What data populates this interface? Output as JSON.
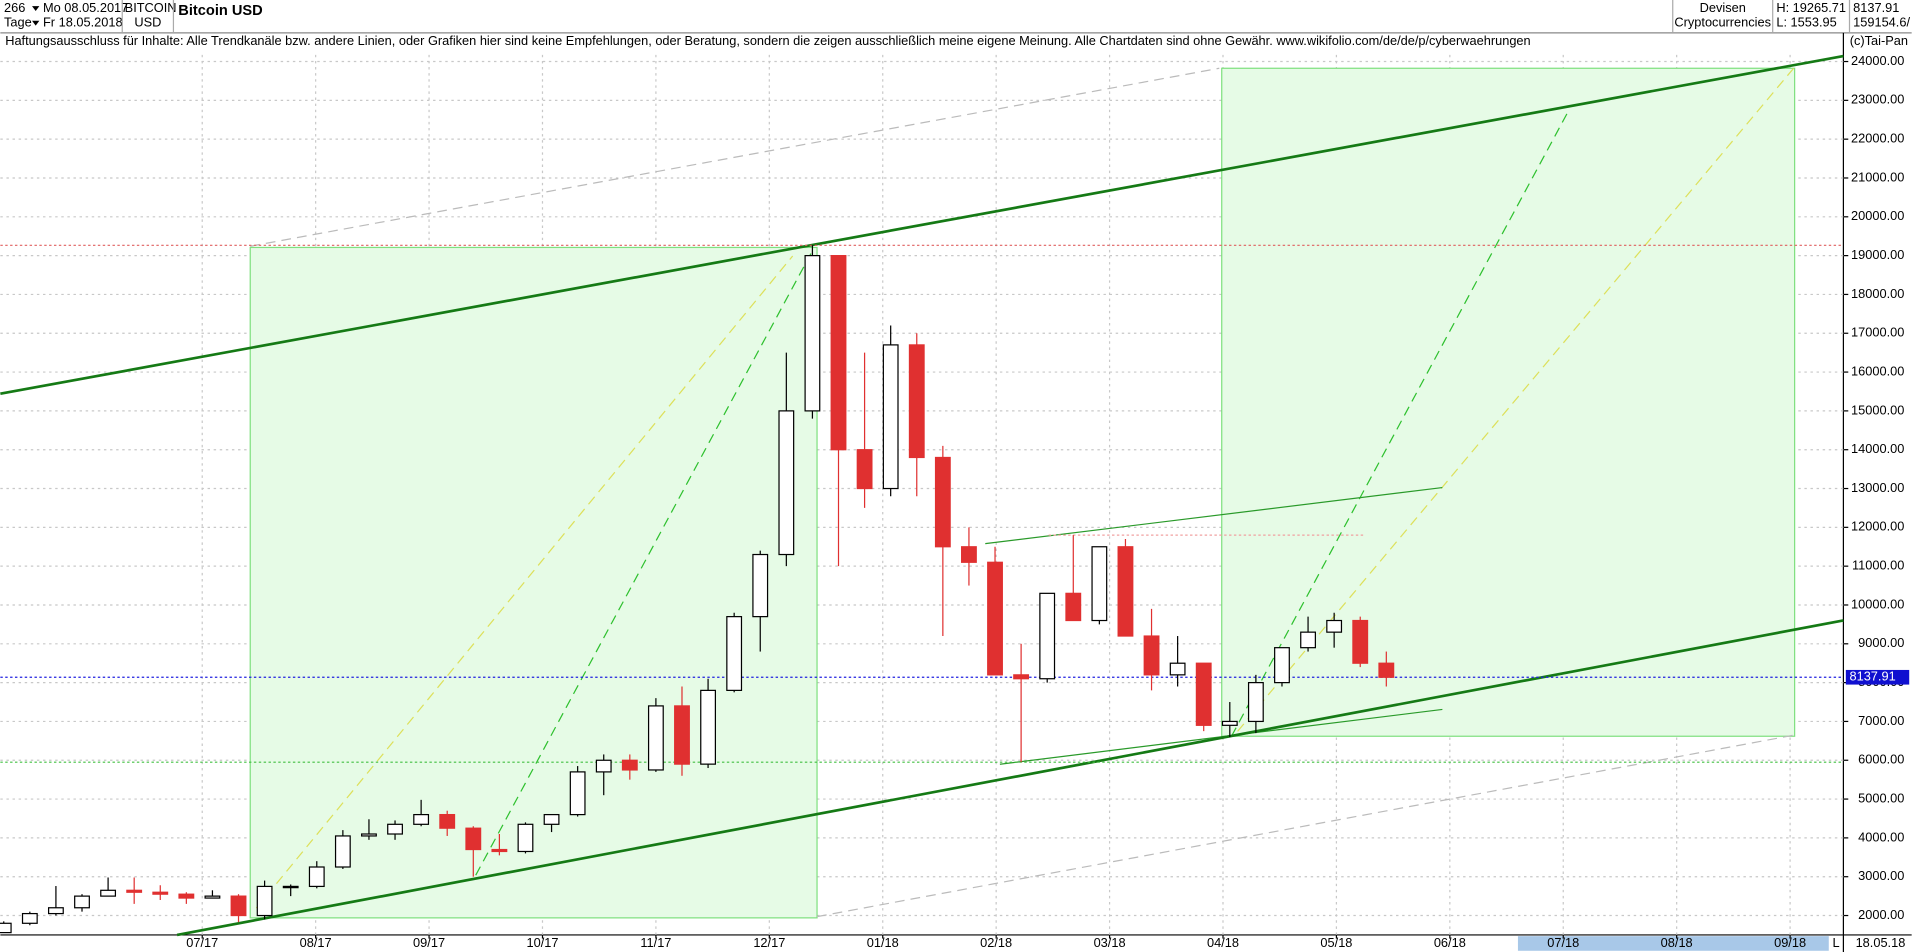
{
  "header": {
    "period": "266",
    "unit": "Tage",
    "date_from": "Mo 08.05.2017",
    "date_to": "Fr 18.05.2018",
    "symbol": "BITCOIN",
    "currency": "USD",
    "title": "Bitcoin USD",
    "market": "Devisen",
    "segment": "Cryptocurrencies",
    "high": "H: 19265.71",
    "low": "L: 1553.95",
    "last": "8137.91",
    "volume": "159154.6/",
    "disclaimer": "Haftungsausschluss für Inhalte: Alle Trendkanäle bzw. andere Linien, oder Grafiken hier sind keine Empfehlungen, oder Beratung, sondern die zeigen ausschließlich meine eigene Meinung. Alle Chartdaten sind ohne Gewähr.  www.wikifolio.com/de/de/p/cyberwaehrungen",
    "copyright": "(c)Tai-Pan",
    "end_date": "18.05.18",
    "scale": "L"
  },
  "chart_data": {
    "type": "candlestick",
    "up_color": "#000000",
    "down_color": "#e03030",
    "last_price": 8137.91,
    "high_price": 19265.71,
    "support_price": 5950,
    "x": [
      -1.75,
      -1.52,
      -1.29,
      -1.06,
      -0.83,
      -0.6,
      -0.37,
      -0.14,
      0.09,
      0.32,
      0.55,
      0.78,
      1.01,
      1.24,
      1.47,
      1.7,
      1.93,
      2.16,
      2.39,
      2.62,
      2.85,
      3.08,
      3.31,
      3.54,
      3.77,
      4.0,
      4.23,
      4.46,
      4.69,
      4.92,
      5.15,
      5.38,
      5.61,
      5.84,
      6.07,
      6.3,
      6.53,
      6.76,
      6.99,
      7.22,
      7.45,
      7.68,
      7.91,
      8.14,
      8.37,
      8.6,
      8.83,
      9.06,
      9.29,
      9.52,
      9.75,
      9.98,
      10.21,
      10.44
    ],
    "open": [
      1560,
      1800,
      2050,
      2200,
      2500,
      2650,
      2600,
      2550,
      2450,
      2500,
      2000,
      2750,
      2750,
      3250,
      4050,
      4100,
      4350,
      4600,
      4250,
      3700,
      3650,
      4350,
      4600,
      5700,
      6000,
      5750,
      7400,
      5900,
      7800,
      9700,
      11300,
      15000,
      19000,
      14000,
      13000,
      16700,
      13800,
      11500,
      11100,
      8200,
      8100,
      10300,
      9600,
      11500,
      9200,
      8200,
      8500,
      6900,
      7000,
      8000,
      8900,
      9300,
      9600,
      8500
    ],
    "high": [
      1850,
      2100,
      2760,
      2550,
      2980,
      2980,
      2780,
      2600,
      2650,
      2550,
      2900,
      2800,
      3400,
      4200,
      4480,
      4450,
      4980,
      4700,
      4300,
      4100,
      4400,
      4600,
      5850,
      6150,
      6150,
      7600,
      7900,
      8100,
      9800,
      11400,
      16500,
      19265.71,
      19000,
      16500,
      17200,
      17000,
      14100,
      12000,
      11500,
      9000,
      10300,
      11800,
      11500,
      11700,
      9900,
      9200,
      8500,
      7500,
      8200,
      8900,
      9700,
      9800,
      9700,
      8800
    ],
    "low": [
      1553.95,
      1750,
      2000,
      2100,
      2500,
      2300,
      2400,
      2300,
      2450,
      1830,
      1900,
      2500,
      2700,
      3200,
      3950,
      3950,
      4300,
      4050,
      3000,
      3550,
      3600,
      4150,
      4550,
      5100,
      5500,
      5700,
      5600,
      5800,
      7750,
      8800,
      11000,
      14800,
      11000,
      12500,
      12800,
      12800,
      9200,
      10500,
      8200,
      5950,
      8000,
      9600,
      9500,
      9200,
      7800,
      7900,
      6750,
      6600,
      6700,
      7900,
      8800,
      8900,
      8400,
      7900
    ],
    "close": [
      1800,
      2050,
      2200,
      2500,
      2650,
      2600,
      2550,
      2450,
      2500,
      2000,
      2750,
      2750,
      3250,
      4050,
      4100,
      4350,
      4600,
      4250,
      3700,
      3650,
      4350,
      4600,
      5700,
      6000,
      5750,
      7400,
      5900,
      7800,
      9700,
      11300,
      15000,
      19000,
      14000,
      13000,
      16700,
      13800,
      11500,
      11100,
      8200,
      8100,
      10300,
      9600,
      11500,
      9200,
      8200,
      8500,
      6900,
      7000,
      8000,
      8900,
      9300,
      9600,
      8500,
      8137.91
    ],
    "xlim": [
      -1.78,
      14.47
    ],
    "ylim": [
      1500,
      24800
    ],
    "xticks": [
      {
        "value": 0,
        "label": "07/17"
      },
      {
        "value": 1,
        "label": "08/17"
      },
      {
        "value": 2,
        "label": "09/17"
      },
      {
        "value": 3,
        "label": "10/17"
      },
      {
        "value": 4,
        "label": "11/17"
      },
      {
        "value": 5,
        "label": "12/17"
      },
      {
        "value": 6,
        "label": "01/18"
      },
      {
        "value": 7,
        "label": "02/18"
      },
      {
        "value": 8,
        "label": "03/18"
      },
      {
        "value": 9,
        "label": "04/18"
      },
      {
        "value": 10,
        "label": "05/18"
      },
      {
        "value": 11,
        "label": "06/18"
      },
      {
        "value": 12,
        "label": "07/18"
      },
      {
        "value": 13,
        "label": "08/18"
      },
      {
        "value": 14,
        "label": "09/18"
      }
    ],
    "yticks": [
      {
        "value": 2000,
        "label": "2000.00"
      },
      {
        "value": 3000,
        "label": "3000.00"
      },
      {
        "value": 4000,
        "label": "4000.00"
      },
      {
        "value": 5000,
        "label": "5000.00"
      },
      {
        "value": 6000,
        "label": "6000.00"
      },
      {
        "value": 7000,
        "label": "7000.00"
      },
      {
        "value": 8000,
        "label": "8000.00"
      },
      {
        "value": 9000,
        "label": "9000.00"
      },
      {
        "value": 10000,
        "label": "10000.00"
      },
      {
        "value": 11000,
        "label": "11000.00"
      },
      {
        "value": 12000,
        "label": "12000.00"
      },
      {
        "value": 13000,
        "label": "13000.00"
      },
      {
        "value": 14000,
        "label": "14000.00"
      },
      {
        "value": 15000,
        "label": "15000.00"
      },
      {
        "value": 16000,
        "label": "16000.00"
      },
      {
        "value": 17000,
        "label": "17000.00"
      },
      {
        "value": 18000,
        "label": "18000.00"
      },
      {
        "value": 19000,
        "label": "19000.00"
      },
      {
        "value": 20000,
        "label": "20000.00"
      },
      {
        "value": 21000,
        "label": "21000.00"
      },
      {
        "value": 22000,
        "label": "22000.00"
      },
      {
        "value": 23000,
        "label": "23000.00"
      },
      {
        "value": 24000,
        "label": "24000.00"
      }
    ]
  }
}
